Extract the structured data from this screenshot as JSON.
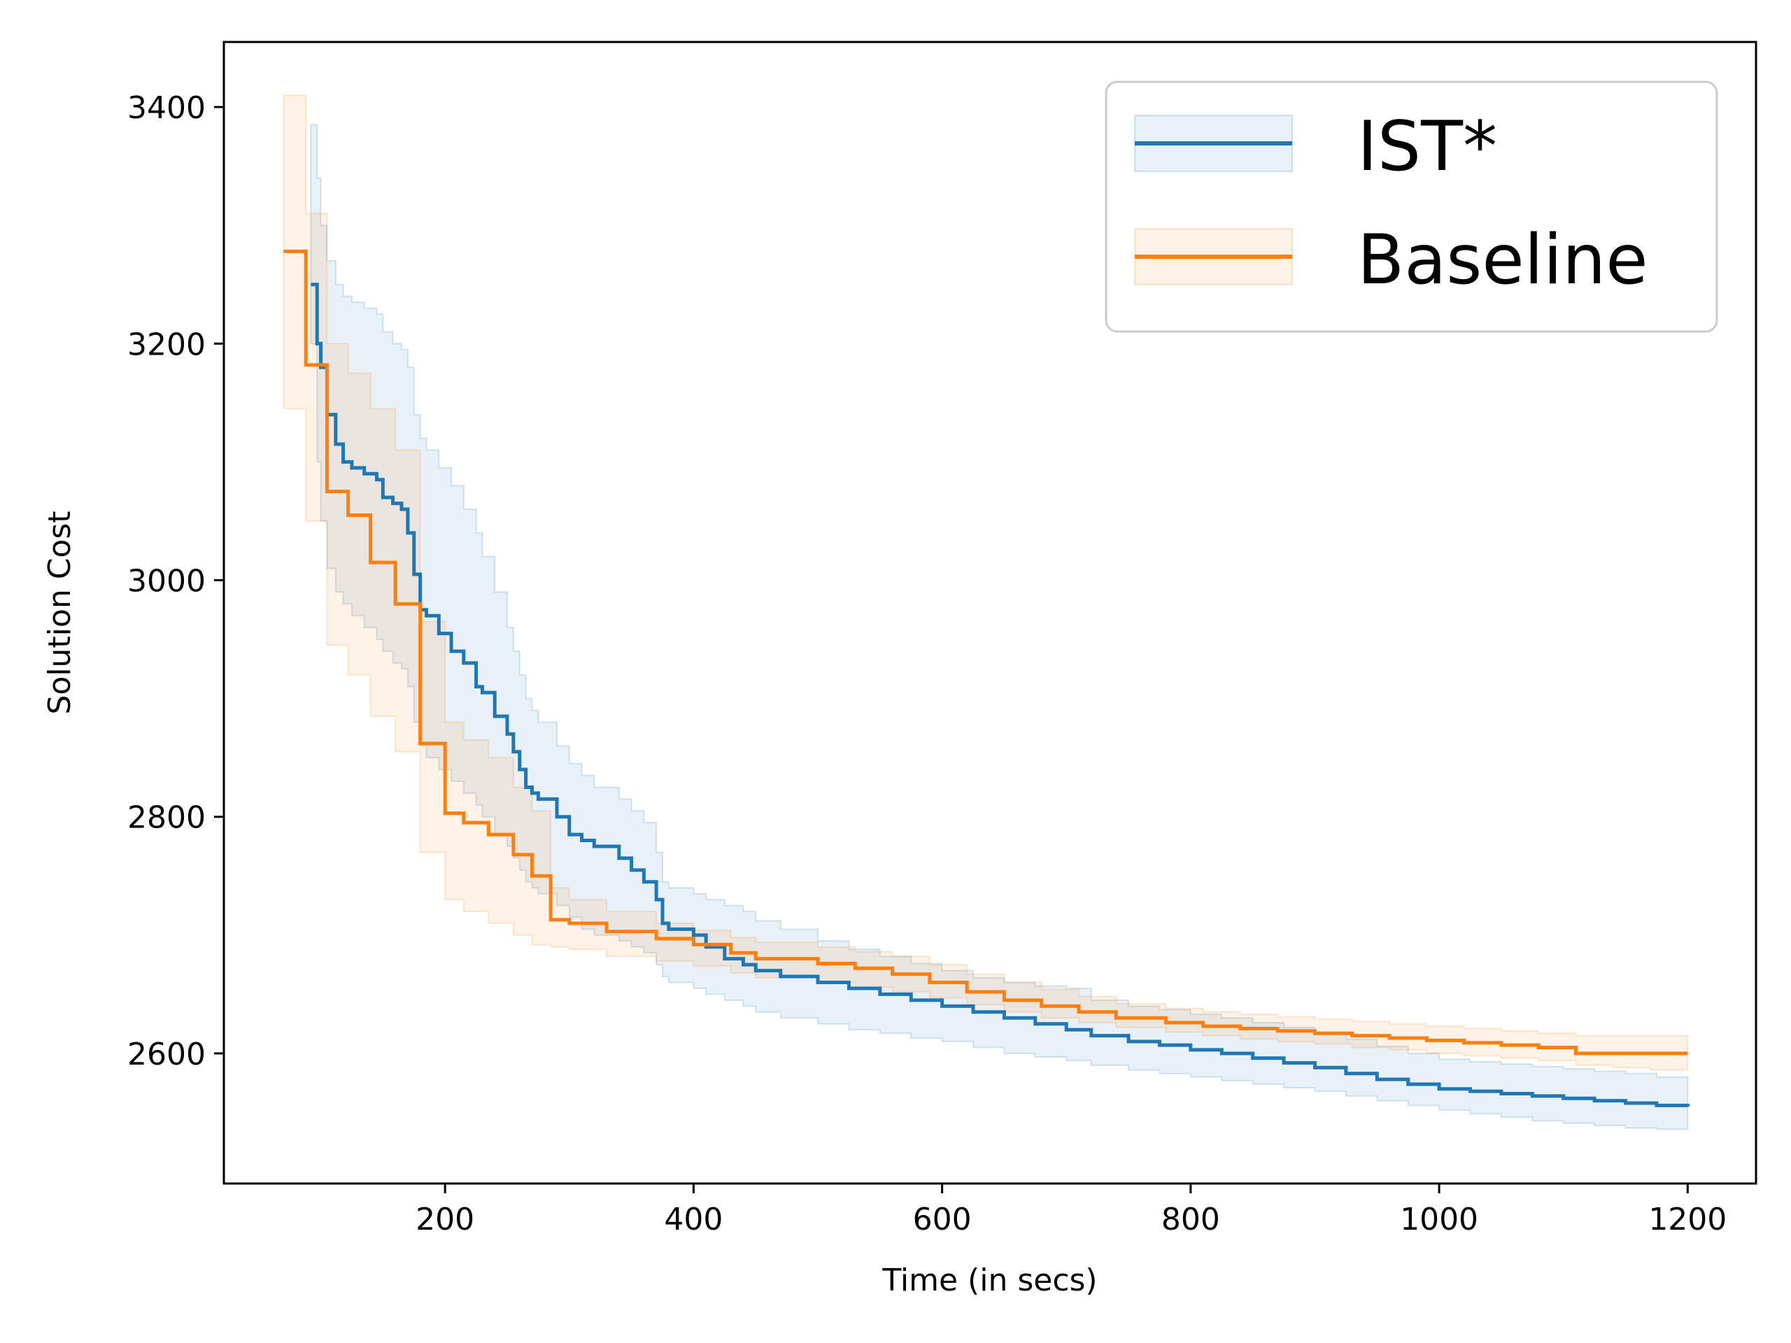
{
  "chart_data": {
    "type": "line",
    "title": "",
    "xlabel": "Time (in secs)",
    "ylabel": "Solution Cost",
    "xlim": [
      22,
      1255
    ],
    "ylim": [
      2490,
      3455
    ],
    "x_ticks": [
      200,
      400,
      600,
      800,
      1000,
      1200
    ],
    "y_ticks": [
      2600,
      2800,
      3000,
      3200,
      3400
    ],
    "x_tick_labels": [
      "200",
      "400",
      "600",
      "800",
      "1000",
      "1200"
    ],
    "y_tick_labels": [
      "2600",
      "2800",
      "3000",
      "3200",
      "3400"
    ],
    "grid": false,
    "legend_position": "top-right",
    "series": [
      {
        "name": "IST*",
        "color": "#1f77b4",
        "band_opacity": 0.1,
        "x": [
          92,
          97,
          100,
          105,
          112,
          118,
          125,
          135,
          145,
          150,
          158,
          165,
          170,
          175,
          180,
          185,
          195,
          205,
          215,
          225,
          230,
          240,
          250,
          255,
          260,
          265,
          270,
          275,
          290,
          300,
          310,
          320,
          340,
          350,
          360,
          370,
          375,
          380,
          400,
          410,
          425,
          440,
          450,
          470,
          500,
          525,
          550,
          575,
          600,
          625,
          650,
          675,
          700,
          720,
          750,
          775,
          800,
          825,
          850,
          875,
          900,
          925,
          950,
          975,
          1000,
          1025,
          1050,
          1075,
          1100,
          1125,
          1150,
          1175,
          1200
        ],
        "values": [
          3250,
          3200,
          3180,
          3140,
          3115,
          3100,
          3095,
          3090,
          3085,
          3070,
          3065,
          3060,
          3040,
          3005,
          2975,
          2970,
          2955,
          2940,
          2930,
          2910,
          2905,
          2885,
          2870,
          2855,
          2840,
          2825,
          2820,
          2815,
          2800,
          2785,
          2780,
          2775,
          2765,
          2755,
          2745,
          2730,
          2710,
          2705,
          2700,
          2690,
          2680,
          2675,
          2670,
          2665,
          2660,
          2655,
          2650,
          2645,
          2640,
          2635,
          2630,
          2625,
          2620,
          2615,
          2610,
          2607,
          2603,
          2600,
          2596,
          2592,
          2588,
          2583,
          2578,
          2574,
          2570,
          2568,
          2566,
          2564,
          2562,
          2560,
          2558,
          2556,
          2555
        ],
        "lower": [
          3200,
          3100,
          3050,
          3010,
          2990,
          2980,
          2970,
          2960,
          2950,
          2940,
          2930,
          2925,
          2910,
          2880,
          2860,
          2850,
          2840,
          2830,
          2820,
          2810,
          2800,
          2785,
          2775,
          2765,
          2755,
          2745,
          2740,
          2735,
          2725,
          2715,
          2705,
          2700,
          2695,
          2690,
          2685,
          2675,
          2665,
          2660,
          2655,
          2650,
          2645,
          2640,
          2635,
          2630,
          2625,
          2620,
          2617,
          2613,
          2610,
          2605,
          2600,
          2597,
          2594,
          2590,
          2586,
          2583,
          2580,
          2577,
          2574,
          2571,
          2568,
          2564,
          2560,
          2556,
          2552,
          2549,
          2546,
          2543,
          2541,
          2539,
          2537,
          2536,
          2535
        ],
        "upper": [
          3385,
          3340,
          3300,
          3270,
          3250,
          3240,
          3235,
          3230,
          3225,
          3210,
          3200,
          3195,
          3180,
          3140,
          3120,
          3110,
          3095,
          3080,
          3060,
          3040,
          3020,
          2990,
          2960,
          2940,
          2920,
          2900,
          2890,
          2880,
          2860,
          2845,
          2835,
          2825,
          2815,
          2805,
          2795,
          2770,
          2745,
          2740,
          2735,
          2730,
          2725,
          2720,
          2712,
          2705,
          2695,
          2688,
          2682,
          2676,
          2670,
          2664,
          2660,
          2657,
          2655,
          2645,
          2640,
          2637,
          2633,
          2630,
          2626,
          2622,
          2618,
          2612,
          2606,
          2600,
          2595,
          2593,
          2591,
          2589,
          2587,
          2585,
          2583,
          2580,
          2578
        ]
      },
      {
        "name": "Baseline",
        "color": "#ff7f0e",
        "band_opacity": 0.1,
        "x": [
          70,
          88,
          105,
          122,
          140,
          160,
          180,
          200,
          215,
          235,
          255,
          270,
          285,
          300,
          330,
          370,
          400,
          430,
          450,
          500,
          530,
          560,
          590,
          620,
          650,
          680,
          710,
          740,
          780,
          810,
          840,
          870,
          900,
          930,
          960,
          990,
          1020,
          1050,
          1080,
          1110,
          1140,
          1170,
          1200
        ],
        "values": [
          3278,
          3182,
          3075,
          3055,
          3015,
          2980,
          2862,
          2803,
          2795,
          2785,
          2768,
          2750,
          2713,
          2710,
          2703,
          2697,
          2692,
          2685,
          2680,
          2676,
          2672,
          2667,
          2660,
          2652,
          2645,
          2640,
          2635,
          2630,
          2626,
          2623,
          2621,
          2619,
          2617,
          2615,
          2613,
          2611,
          2609,
          2607,
          2605,
          2600,
          2600,
          2600,
          2600
        ],
        "lower": [
          3145,
          3050,
          2945,
          2920,
          2885,
          2855,
          2770,
          2730,
          2720,
          2710,
          2700,
          2692,
          2690,
          2688,
          2682,
          2678,
          2674,
          2668,
          2664,
          2660,
          2656,
          2652,
          2647,
          2641,
          2635,
          2630,
          2626,
          2622,
          2618,
          2615,
          2612,
          2610,
          2608,
          2605,
          2603,
          2600,
          2598,
          2596,
          2594,
          2590,
          2588,
          2586,
          2585
        ],
        "upper": [
          3410,
          3310,
          3200,
          3175,
          3145,
          3110,
          2965,
          2880,
          2865,
          2850,
          2825,
          2805,
          2740,
          2730,
          2720,
          2710,
          2704,
          2698,
          2694,
          2690,
          2686,
          2682,
          2675,
          2667,
          2660,
          2654,
          2648,
          2642,
          2638,
          2635,
          2633,
          2631,
          2629,
          2627,
          2625,
          2623,
          2621,
          2619,
          2617,
          2615,
          2615,
          2615,
          2615
        ]
      }
    ]
  }
}
